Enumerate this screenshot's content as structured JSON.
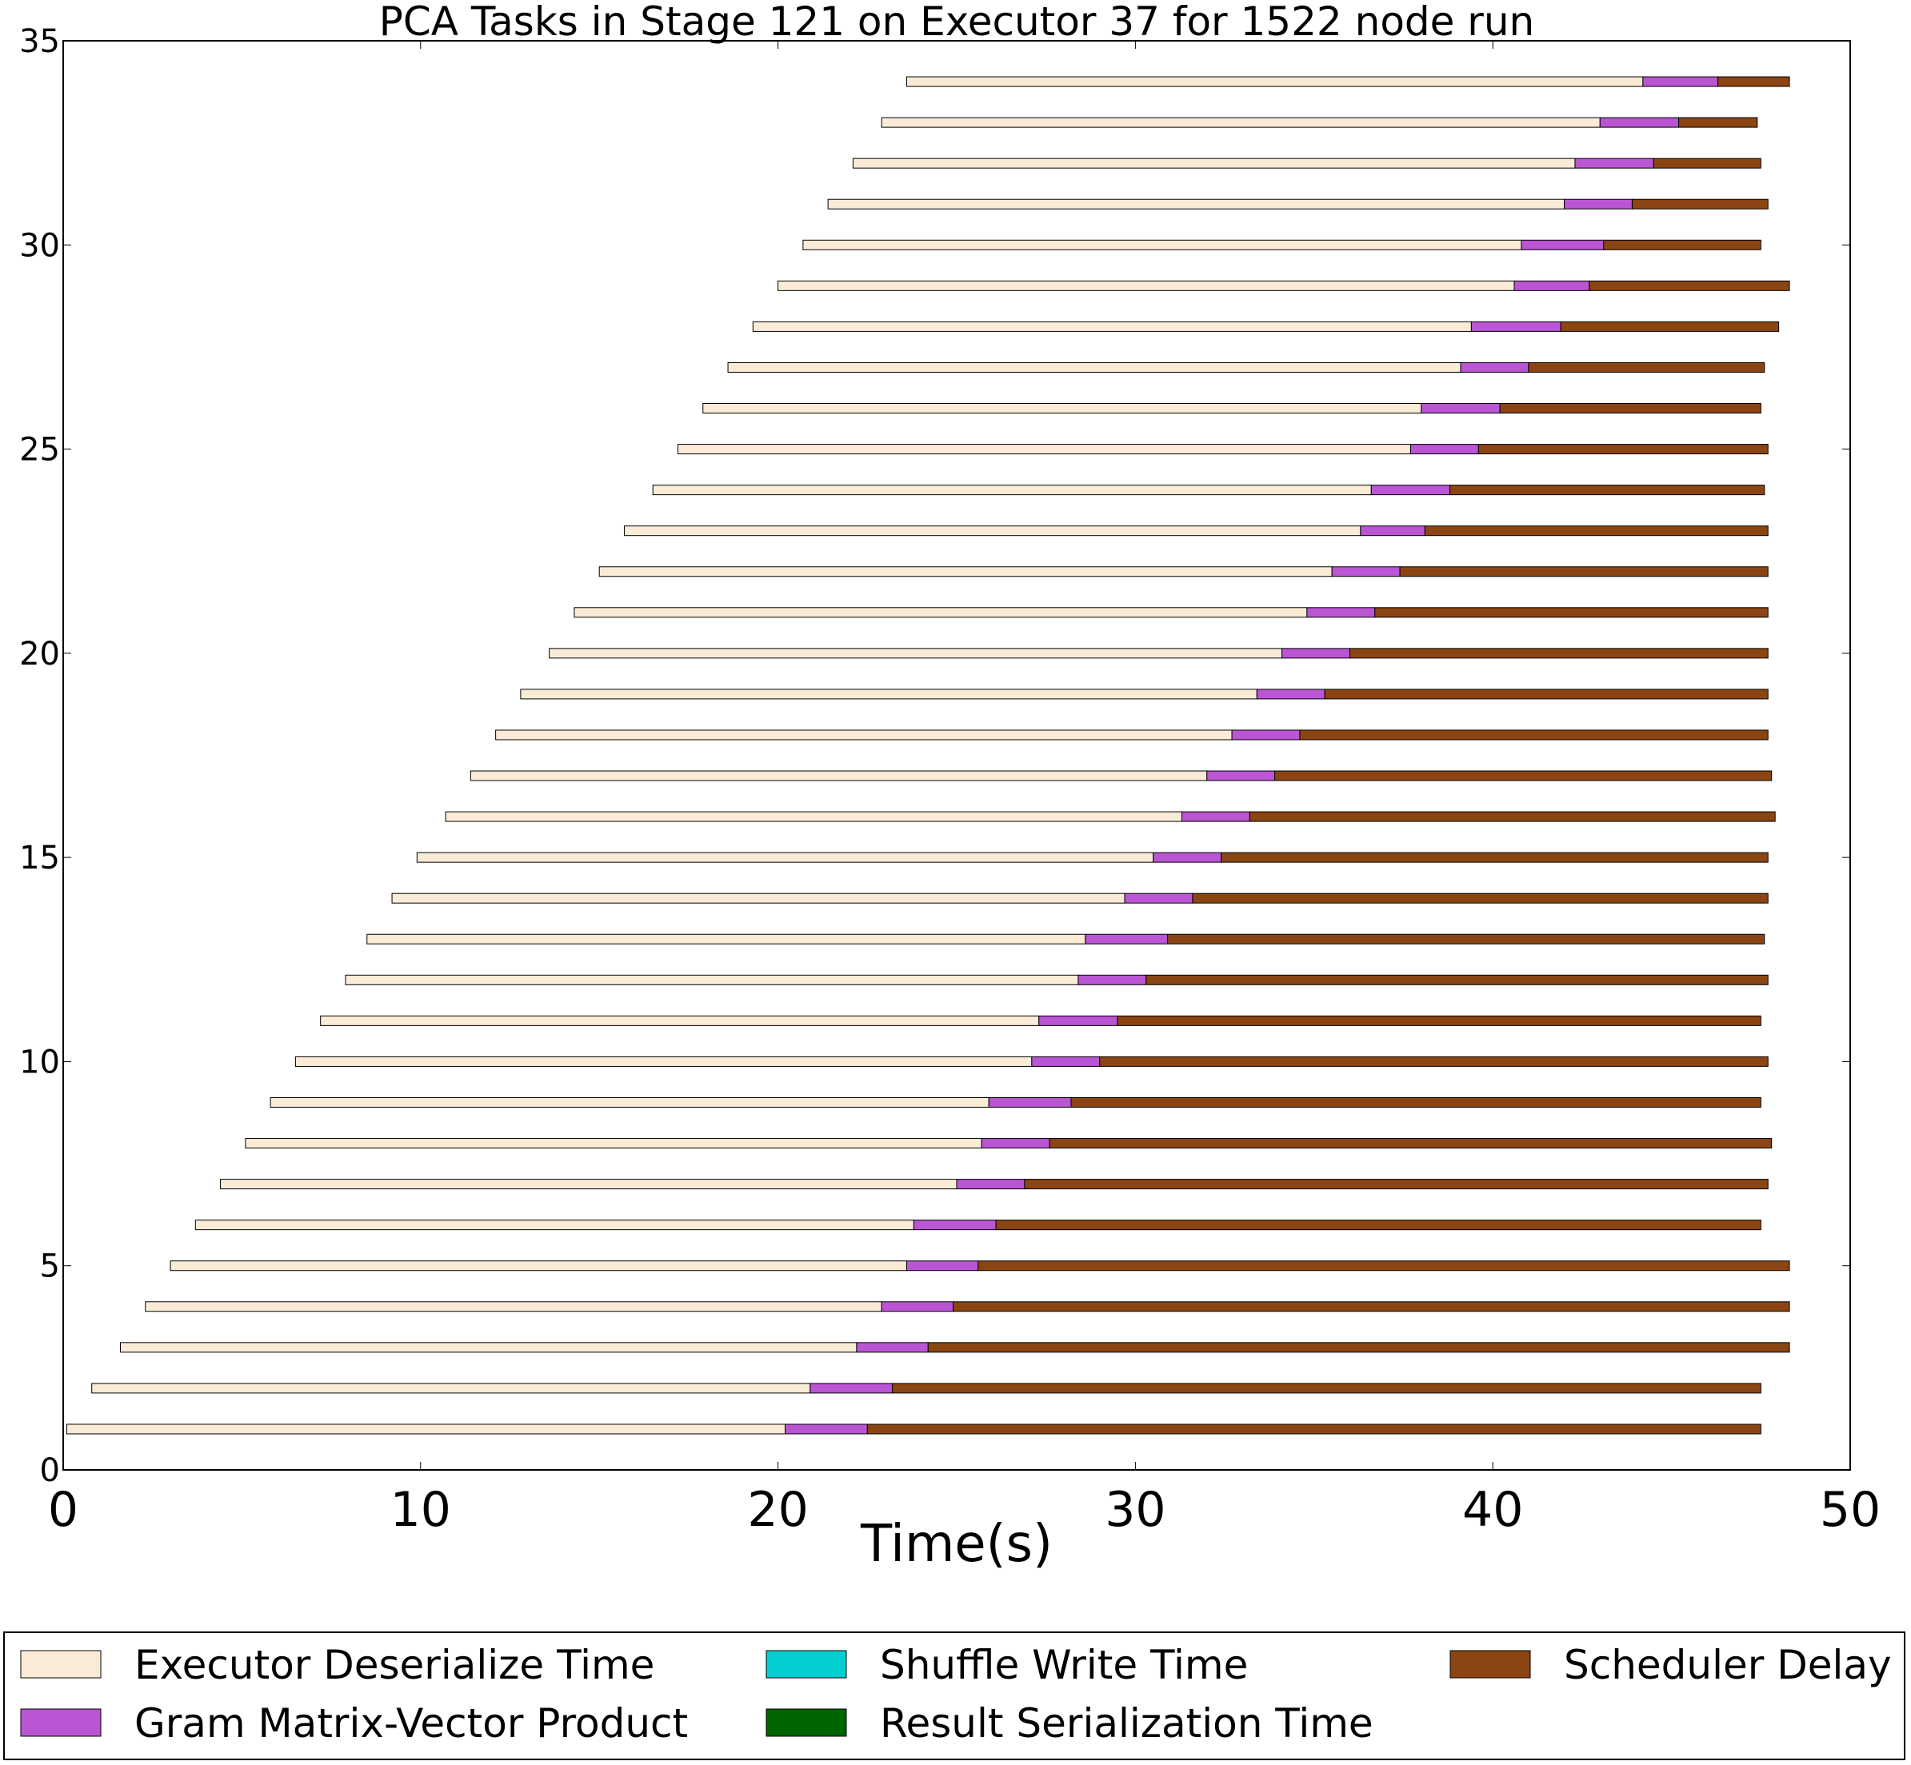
{
  "chart_data": {
    "type": "bar",
    "orientation": "horizontal-stacked",
    "title": "PCA Tasks in Stage 121 on Executor 37 for 1522 node run",
    "xlabel": "Time(s)",
    "ylabel": "",
    "xlim": [
      0,
      50
    ],
    "ylim": [
      0,
      35
    ],
    "xticks": [
      "0",
      "10",
      "20",
      "30",
      "40",
      "50"
    ],
    "yticks": [
      "0",
      "5",
      "10",
      "15",
      "20",
      "25",
      "30",
      "35"
    ],
    "grid": false,
    "legend_position": "bottom",
    "series": [
      {
        "name": "Executor Deserialize Time",
        "color": "#FAEBD7"
      },
      {
        "name": "Gram Matrix-Vector Product",
        "color": "#BA55D3"
      },
      {
        "name": "Shuffle Write Time",
        "color": "#00CED1"
      },
      {
        "name": "Result Serialization Time",
        "color": "#006400"
      },
      {
        "name": "Scheduler Delay",
        "color": "#8B4513"
      }
    ],
    "tasks": [
      {
        "y": 1,
        "start": 0.1,
        "deserialize_end": 20.2,
        "gram_end": 22.5,
        "end": 47.5
      },
      {
        "y": 2,
        "start": 0.8,
        "deserialize_end": 20.9,
        "gram_end": 23.2,
        "end": 47.5
      },
      {
        "y": 3,
        "start": 1.6,
        "deserialize_end": 22.2,
        "gram_end": 24.2,
        "end": 48.3
      },
      {
        "y": 4,
        "start": 2.3,
        "deserialize_end": 22.9,
        "gram_end": 24.9,
        "end": 48.3
      },
      {
        "y": 5,
        "start": 3.0,
        "deserialize_end": 23.6,
        "gram_end": 25.6,
        "end": 48.3
      },
      {
        "y": 6,
        "start": 3.7,
        "deserialize_end": 23.8,
        "gram_end": 26.1,
        "end": 47.5
      },
      {
        "y": 7,
        "start": 4.4,
        "deserialize_end": 25.0,
        "gram_end": 26.9,
        "end": 47.7
      },
      {
        "y": 8,
        "start": 5.1,
        "deserialize_end": 25.7,
        "gram_end": 27.6,
        "end": 47.8
      },
      {
        "y": 9,
        "start": 5.8,
        "deserialize_end": 25.9,
        "gram_end": 28.2,
        "end": 47.5
      },
      {
        "y": 10,
        "start": 6.5,
        "deserialize_end": 27.1,
        "gram_end": 29.0,
        "end": 47.7
      },
      {
        "y": 11,
        "start": 7.2,
        "deserialize_end": 27.3,
        "gram_end": 29.5,
        "end": 47.5
      },
      {
        "y": 12,
        "start": 7.9,
        "deserialize_end": 28.4,
        "gram_end": 30.3,
        "end": 47.7
      },
      {
        "y": 13,
        "start": 8.5,
        "deserialize_end": 28.6,
        "gram_end": 30.9,
        "end": 47.6
      },
      {
        "y": 14,
        "start": 9.2,
        "deserialize_end": 29.7,
        "gram_end": 31.6,
        "end": 47.7
      },
      {
        "y": 15,
        "start": 9.9,
        "deserialize_end": 30.5,
        "gram_end": 32.4,
        "end": 47.7
      },
      {
        "y": 16,
        "start": 10.7,
        "deserialize_end": 31.3,
        "gram_end": 33.2,
        "end": 47.9
      },
      {
        "y": 17,
        "start": 11.4,
        "deserialize_end": 32.0,
        "gram_end": 33.9,
        "end": 47.8
      },
      {
        "y": 18,
        "start": 12.1,
        "deserialize_end": 32.7,
        "gram_end": 34.6,
        "end": 47.7
      },
      {
        "y": 19,
        "start": 12.8,
        "deserialize_end": 33.4,
        "gram_end": 35.3,
        "end": 47.7
      },
      {
        "y": 20,
        "start": 13.6,
        "deserialize_end": 34.1,
        "gram_end": 36.0,
        "end": 47.7
      },
      {
        "y": 21,
        "start": 14.3,
        "deserialize_end": 34.8,
        "gram_end": 36.7,
        "end": 47.7
      },
      {
        "y": 22,
        "start": 15.0,
        "deserialize_end": 35.5,
        "gram_end": 37.4,
        "end": 47.7
      },
      {
        "y": 23,
        "start": 15.7,
        "deserialize_end": 36.3,
        "gram_end": 38.1,
        "end": 47.7
      },
      {
        "y": 24,
        "start": 16.5,
        "deserialize_end": 36.6,
        "gram_end": 38.8,
        "end": 47.6
      },
      {
        "y": 25,
        "start": 17.2,
        "deserialize_end": 37.7,
        "gram_end": 39.6,
        "end": 47.7
      },
      {
        "y": 26,
        "start": 17.9,
        "deserialize_end": 38.0,
        "gram_end": 40.2,
        "end": 47.5
      },
      {
        "y": 27,
        "start": 18.6,
        "deserialize_end": 39.1,
        "gram_end": 41.0,
        "end": 47.6
      },
      {
        "y": 28,
        "start": 19.3,
        "deserialize_end": 39.4,
        "gram_end": 41.9,
        "end": 48.0
      },
      {
        "y": 29,
        "start": 20.0,
        "deserialize_end": 40.6,
        "gram_end": 42.7,
        "end": 48.3
      },
      {
        "y": 30,
        "start": 20.7,
        "deserialize_end": 40.8,
        "gram_end": 43.1,
        "end": 47.5
      },
      {
        "y": 31,
        "start": 21.4,
        "deserialize_end": 42.0,
        "gram_end": 43.9,
        "end": 47.7
      },
      {
        "y": 32,
        "start": 22.1,
        "deserialize_end": 42.3,
        "gram_end": 44.5,
        "end": 47.5
      },
      {
        "y": 33,
        "start": 22.9,
        "deserialize_end": 43.0,
        "gram_end": 45.2,
        "end": 47.4
      },
      {
        "y": 34,
        "start": 23.6,
        "deserialize_end": 44.2,
        "gram_end": 46.3,
        "end": 48.3
      }
    ]
  }
}
